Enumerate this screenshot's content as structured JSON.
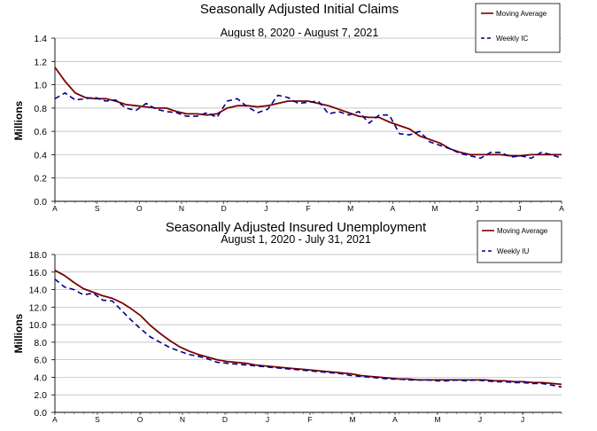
{
  "chart_data": [
    {
      "type": "line",
      "title": "Seasonally Adjusted Initial Claims",
      "subtitle": "August 8, 2020 - August 7, 2021",
      "ylabel": "Millions",
      "ylim": [
        0,
        1.4
      ],
      "yticks": [
        "0.0",
        "0.2",
        "0.4",
        "0.6",
        "0.8",
        "1.0",
        "1.2",
        "1.4"
      ],
      "xticks": [
        "A",
        "S",
        "O",
        "N",
        "D",
        "J",
        "F",
        "M",
        "A",
        "M",
        "J",
        "J",
        "A"
      ],
      "grid": "horizontal",
      "legend": "top-right",
      "series": [
        {
          "name": "Moving Average",
          "color": "#7b0000",
          "style": "solid",
          "values": [
            1.15,
            1.03,
            0.93,
            0.89,
            0.88,
            0.88,
            0.86,
            0.83,
            0.82,
            0.81,
            0.8,
            0.8,
            0.77,
            0.75,
            0.75,
            0.74,
            0.75,
            0.8,
            0.82,
            0.82,
            0.81,
            0.82,
            0.84,
            0.86,
            0.86,
            0.86,
            0.84,
            0.82,
            0.79,
            0.76,
            0.73,
            0.72,
            0.72,
            0.68,
            0.65,
            0.62,
            0.56,
            0.53,
            0.5,
            0.45,
            0.42,
            0.4,
            0.4,
            0.4,
            0.4,
            0.39,
            0.39,
            0.4,
            0.4,
            0.4,
            0.4
          ]
        },
        {
          "name": "Weekly IC",
          "color": "#00008b",
          "style": "dashed",
          "values": [
            0.88,
            0.93,
            0.87,
            0.88,
            0.89,
            0.86,
            0.87,
            0.8,
            0.78,
            0.84,
            0.79,
            0.77,
            0.76,
            0.73,
            0.73,
            0.76,
            0.72,
            0.86,
            0.88,
            0.81,
            0.76,
            0.79,
            0.91,
            0.89,
            0.84,
            0.85,
            0.86,
            0.75,
            0.77,
            0.74,
            0.77,
            0.67,
            0.74,
            0.74,
            0.58,
            0.57,
            0.6,
            0.51,
            0.48,
            0.45,
            0.41,
            0.39,
            0.37,
            0.42,
            0.42,
            0.38,
            0.39,
            0.37,
            0.42,
            0.4,
            0.37
          ]
        }
      ]
    },
    {
      "type": "line",
      "title": "Seasonally Adjusted Insured Unemployment",
      "subtitle": "August 1, 2020 - July 31, 2021",
      "ylabel": "Millions",
      "ylim": [
        0,
        18
      ],
      "yticks": [
        "0.0",
        "2.0",
        "4.0",
        "6.0",
        "8.0",
        "10.0",
        "12.0",
        "14.0",
        "16.0",
        "18.0"
      ],
      "xticks": [
        "A",
        "S",
        "O",
        "N",
        "D",
        "J",
        "F",
        "M",
        "A",
        "M",
        "J",
        "J"
      ],
      "grid": "horizontal",
      "legend": "top-right",
      "series": [
        {
          "name": "Moving Average",
          "color": "#7b0000",
          "style": "solid",
          "values": [
            16.2,
            15.6,
            14.8,
            14.1,
            13.7,
            13.3,
            13.0,
            12.5,
            11.8,
            11.0,
            9.9,
            9.0,
            8.2,
            7.5,
            7.0,
            6.6,
            6.3,
            6.0,
            5.8,
            5.7,
            5.6,
            5.4,
            5.3,
            5.2,
            5.1,
            5.0,
            4.9,
            4.8,
            4.7,
            4.6,
            4.5,
            4.4,
            4.2,
            4.1,
            4.0,
            3.9,
            3.8,
            3.8,
            3.7,
            3.7,
            3.7,
            3.7,
            3.7,
            3.7,
            3.7,
            3.7,
            3.6,
            3.6,
            3.5,
            3.5,
            3.4,
            3.4,
            3.3,
            3.2
          ]
        },
        {
          "name": "Weekly IU",
          "color": "#00008b",
          "style": "dashed",
          "values": [
            15.2,
            14.3,
            14.0,
            13.4,
            13.6,
            12.8,
            12.7,
            11.6,
            10.5,
            9.5,
            8.6,
            8.0,
            7.4,
            7.0,
            6.6,
            6.4,
            6.1,
            5.7,
            5.6,
            5.5,
            5.4,
            5.3,
            5.2,
            5.1,
            5.0,
            4.9,
            4.8,
            4.7,
            4.6,
            4.5,
            4.4,
            4.2,
            4.1,
            4.0,
            3.9,
            3.8,
            3.8,
            3.7,
            3.7,
            3.7,
            3.6,
            3.6,
            3.7,
            3.6,
            3.7,
            3.6,
            3.5,
            3.5,
            3.4,
            3.4,
            3.3,
            3.3,
            3.1,
            2.9
          ]
        }
      ]
    }
  ]
}
